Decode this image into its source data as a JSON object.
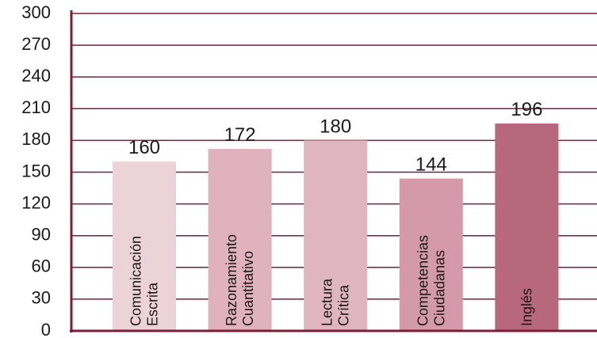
{
  "chart_data": {
    "type": "bar",
    "categories": [
      [
        "Comunicación",
        "Escrita"
      ],
      [
        "Razonamiento",
        "Cuantitativo"
      ],
      [
        "Lectura",
        "Crítica"
      ],
      [
        "Competencias",
        "Ciudadanas"
      ],
      [
        "Inglés"
      ]
    ],
    "values": [
      160,
      172,
      180,
      144,
      196
    ],
    "colors": [
      "#ecd3d8",
      "#dfb2bd",
      "#deb5c0",
      "#d49aa9",
      "#b8687c"
    ],
    "ylim": [
      0,
      300
    ],
    "yticks": [
      0,
      30,
      60,
      90,
      120,
      150,
      180,
      210,
      240,
      270,
      300
    ],
    "grid": true
  }
}
